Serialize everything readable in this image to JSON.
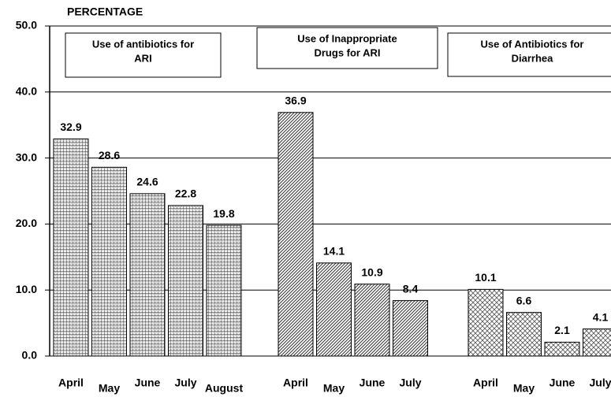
{
  "chart_data": {
    "type": "bar",
    "y_label": "PERCENTAGE",
    "ylim": [
      0,
      50
    ],
    "yticks": [
      {
        "value": 0,
        "label": "0.0"
      },
      {
        "value": 10,
        "label": "10.0"
      },
      {
        "value": 20,
        "label": "20.0"
      },
      {
        "value": 30,
        "label": "30.0"
      },
      {
        "value": 40,
        "label": "40.0"
      },
      {
        "value": 50,
        "label": "50.0"
      }
    ],
    "grid": true,
    "series": [
      {
        "name_lines": [
          "Use of antibiotics for",
          "ARI"
        ],
        "pattern": "grid",
        "categories": [
          "April",
          "May",
          "June",
          "July",
          "August"
        ],
        "values": [
          32.9,
          28.6,
          24.6,
          22.8,
          19.8
        ]
      },
      {
        "name_lines": [
          "Use of Inappropriate",
          "Drugs for ARI"
        ],
        "pattern": "diagonal",
        "categories": [
          "April",
          "May",
          "June",
          "July"
        ],
        "values": [
          36.9,
          14.1,
          10.9,
          8.4
        ]
      },
      {
        "name_lines": [
          "Use of Antibiotics for",
          "Diarrhea"
        ],
        "pattern": "cross",
        "categories": [
          "April",
          "May",
          "June",
          "July"
        ],
        "values": [
          10.1,
          6.6,
          2.1,
          4.1
        ]
      }
    ]
  }
}
